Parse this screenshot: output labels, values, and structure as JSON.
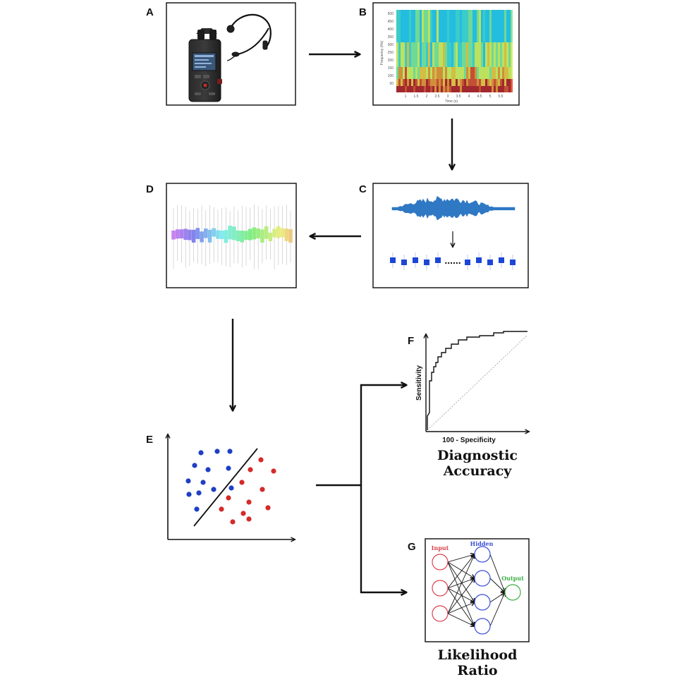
{
  "panels": {
    "A": {
      "letter": "A"
    },
    "B": {
      "letter": "B",
      "y_axis_label": "Frequency (Hz)",
      "x_axis_label": "Time (s)",
      "y_ticks": [
        "500",
        "450",
        "400",
        "350",
        "300",
        "250",
        "200",
        "150",
        "100",
        "50"
      ],
      "x_ticks": [
        "1",
        "1.5",
        "2",
        "2.5",
        "3",
        "3.5",
        "4",
        "4.5",
        "5",
        "5.5"
      ]
    },
    "C": {
      "letter": "C",
      "ellipsis": "......"
    },
    "D": {
      "letter": "D"
    },
    "E": {
      "letter": "E"
    },
    "F": {
      "letter": "F",
      "y_axis_label": "Sensitivity",
      "x_axis_label": "100 - Specificity",
      "caption_line1": "Diagnostic",
      "caption_line2": "Accuracy"
    },
    "G": {
      "letter": "G",
      "input_label": "Input",
      "hidden_label": "Hidden",
      "output_label": "Output",
      "caption_line1": "Likelihood",
      "caption_line2": "Ratio"
    }
  },
  "colors": {
    "frame": "#1a1a1a",
    "arrow": "#111111",
    "class_blue": "#1f3fc4",
    "class_red": "#d42a2a",
    "nn_input": "#d9434f",
    "nn_hidden": "#3a4fd6",
    "nn_output": "#3cb043",
    "waveform": "#2f78c4",
    "box_blue": "#1c46d6"
  }
}
